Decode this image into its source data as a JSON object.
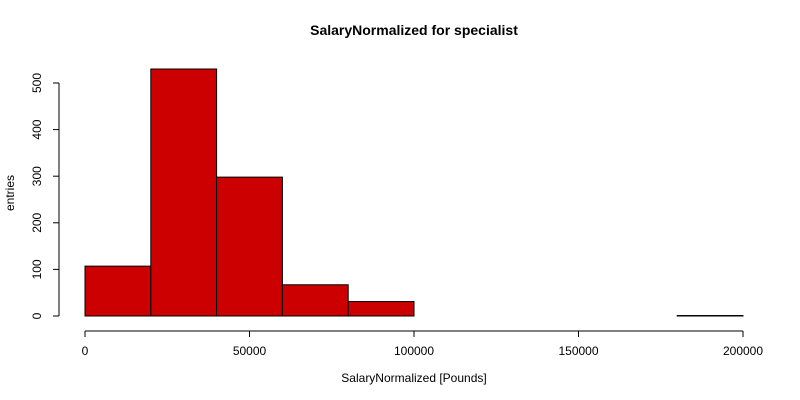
{
  "chart_data": {
    "type": "bar",
    "subtype": "histogram",
    "title": "SalaryNormalized for specialist",
    "xlabel": "SalaryNormalized [Pounds]",
    "ylabel": "entries",
    "bar_color": "#cc0000",
    "edge_color": "#000000",
    "bins": [
      {
        "x0": 0,
        "x1": 20000,
        "count": 107
      },
      {
        "x0": 20000,
        "x1": 40000,
        "count": 530
      },
      {
        "x0": 40000,
        "x1": 60000,
        "count": 298
      },
      {
        "x0": 60000,
        "x1": 80000,
        "count": 67
      },
      {
        "x0": 80000,
        "x1": 100000,
        "count": 31
      },
      {
        "x0": 100000,
        "x1": 120000,
        "count": 0
      },
      {
        "x0": 120000,
        "x1": 140000,
        "count": 0
      },
      {
        "x0": 140000,
        "x1": 160000,
        "count": 0
      },
      {
        "x0": 160000,
        "x1": 180000,
        "count": 0
      },
      {
        "x0": 180000,
        "x1": 200000,
        "count": 1
      }
    ],
    "xlim": [
      0,
      200000
    ],
    "ylim": [
      0,
      530
    ],
    "xticks": [
      0,
      50000,
      100000,
      150000,
      200000
    ],
    "xtick_labels": [
      "0",
      "50000",
      "100000",
      "150000",
      "200000"
    ],
    "yticks": [
      0,
      100,
      200,
      300,
      400,
      500
    ],
    "ytick_labels": [
      "0",
      "100",
      "200",
      "300",
      "400",
      "500"
    ],
    "grid": false,
    "legend": "none"
  }
}
